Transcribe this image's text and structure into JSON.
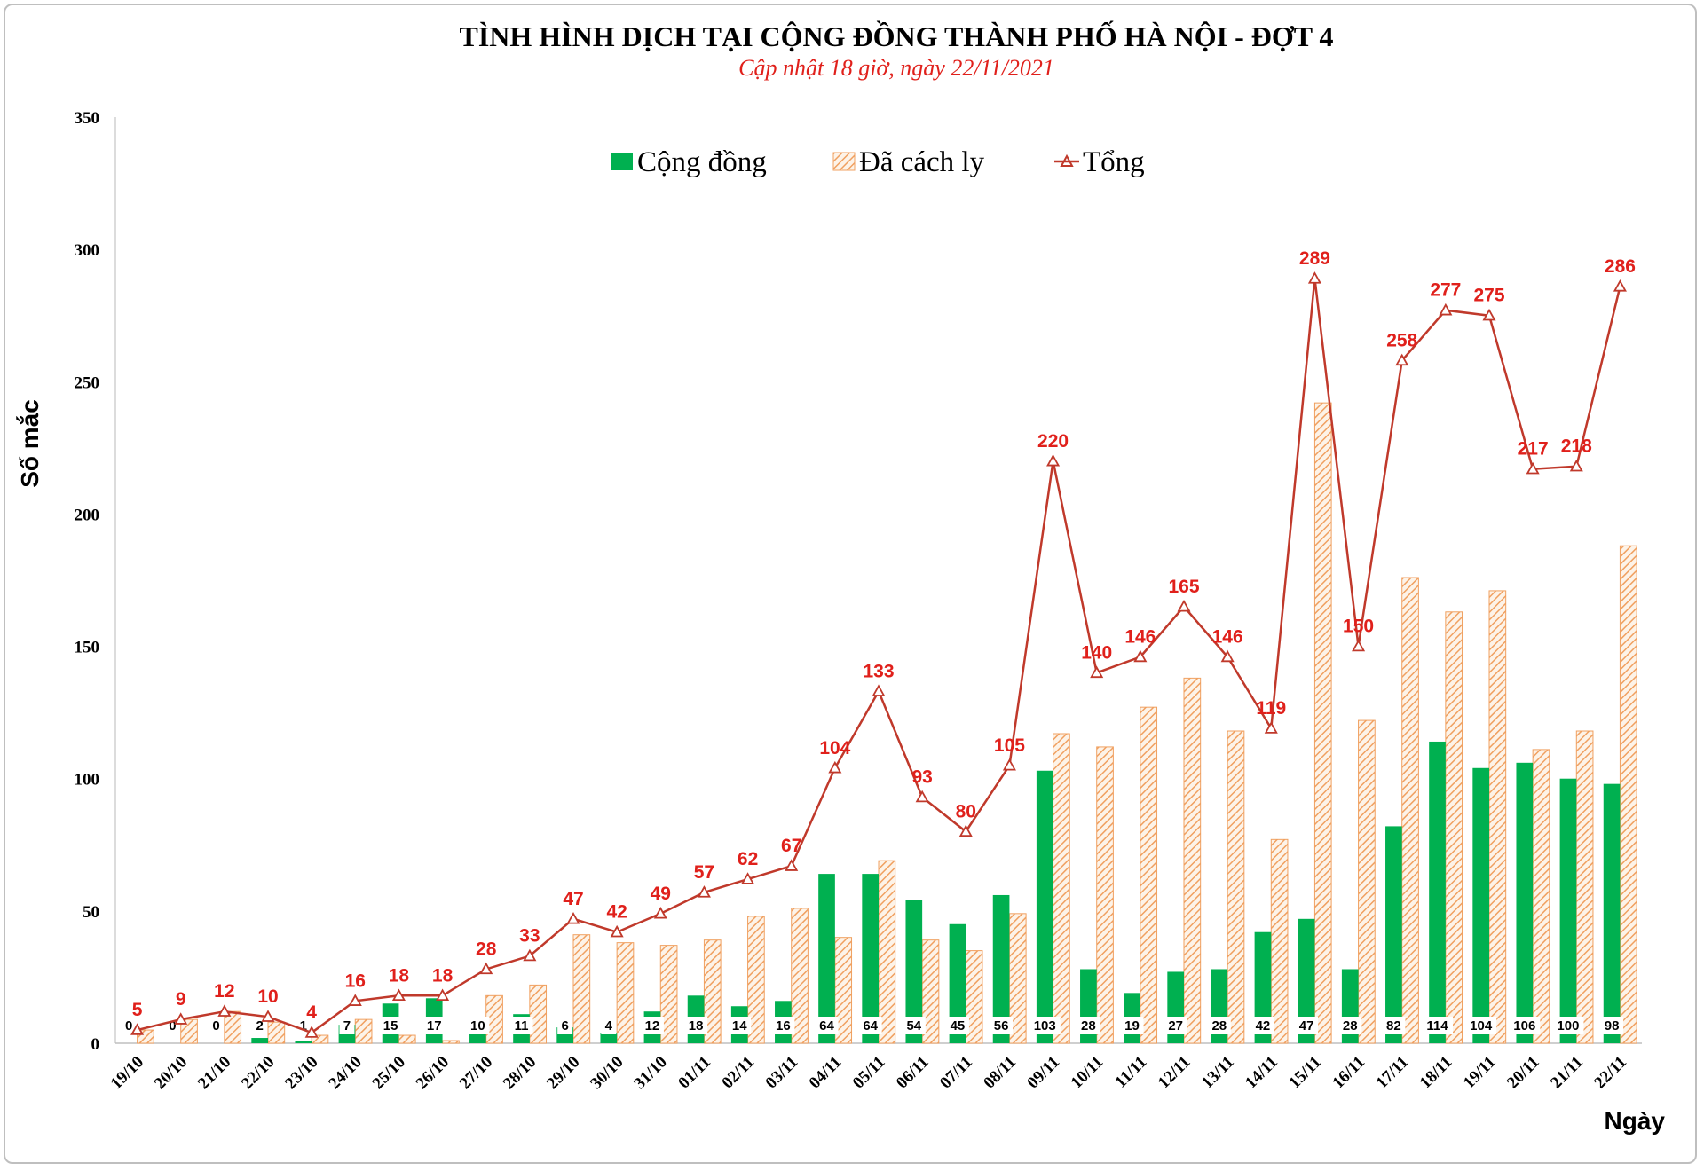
{
  "chart_data": {
    "type": "bar",
    "title": "TÌNH HÌNH DỊCH TẠI CỘNG ĐỒNG THÀNH PHỐ HÀ NỘI - ĐỢT 4",
    "subtitle": "Cập nhật 18 giờ, ngày 22/11/2021",
    "xlabel": "Ngày",
    "ylabel": "Số mắc",
    "ylim": [
      0,
      350
    ],
    "yticks": [
      0,
      50,
      100,
      150,
      200,
      250,
      300,
      350
    ],
    "grid": false,
    "legend_position": "top-center",
    "categories": [
      "19/10",
      "20/10",
      "21/10",
      "22/10",
      "23/10",
      "24/10",
      "25/10",
      "26/10",
      "27/10",
      "28/10",
      "29/10",
      "30/10",
      "31/10",
      "01/11",
      "02/11",
      "03/11",
      "04/11",
      "05/11",
      "06/11",
      "07/11",
      "08/11",
      "09/11",
      "10/11",
      "11/11",
      "12/11",
      "13/11",
      "14/11",
      "15/11",
      "16/11",
      "17/11",
      "18/11",
      "19/11",
      "20/11",
      "21/11",
      "22/11"
    ],
    "series": [
      {
        "name": "Cộng đồng",
        "type": "bar",
        "color": "#00b050",
        "values": [
          0,
          0,
          0,
          2,
          1,
          7,
          15,
          17,
          10,
          11,
          6,
          4,
          12,
          18,
          14,
          16,
          64,
          64,
          54,
          45,
          56,
          103,
          28,
          19,
          27,
          28,
          42,
          47,
          28,
          82,
          114,
          104,
          106,
          100,
          98
        ]
      },
      {
        "name": "Đã cách ly",
        "type": "bar-hatched",
        "color": "#f4a460",
        "values": [
          5,
          9,
          12,
          8,
          3,
          9,
          3,
          1,
          18,
          22,
          41,
          38,
          37,
          39,
          48,
          51,
          40,
          69,
          39,
          35,
          49,
          117,
          112,
          127,
          138,
          118,
          77,
          242,
          122,
          176,
          163,
          171,
          111,
          118,
          188
        ]
      },
      {
        "name": "Tổng",
        "type": "line",
        "color": "#c0392b",
        "values": [
          5,
          9,
          12,
          10,
          4,
          16,
          18,
          18,
          28,
          33,
          47,
          42,
          49,
          57,
          62,
          67,
          104,
          133,
          93,
          80,
          105,
          220,
          140,
          146,
          165,
          146,
          119,
          289,
          150,
          258,
          277,
          275,
          217,
          218,
          286
        ]
      }
    ]
  }
}
